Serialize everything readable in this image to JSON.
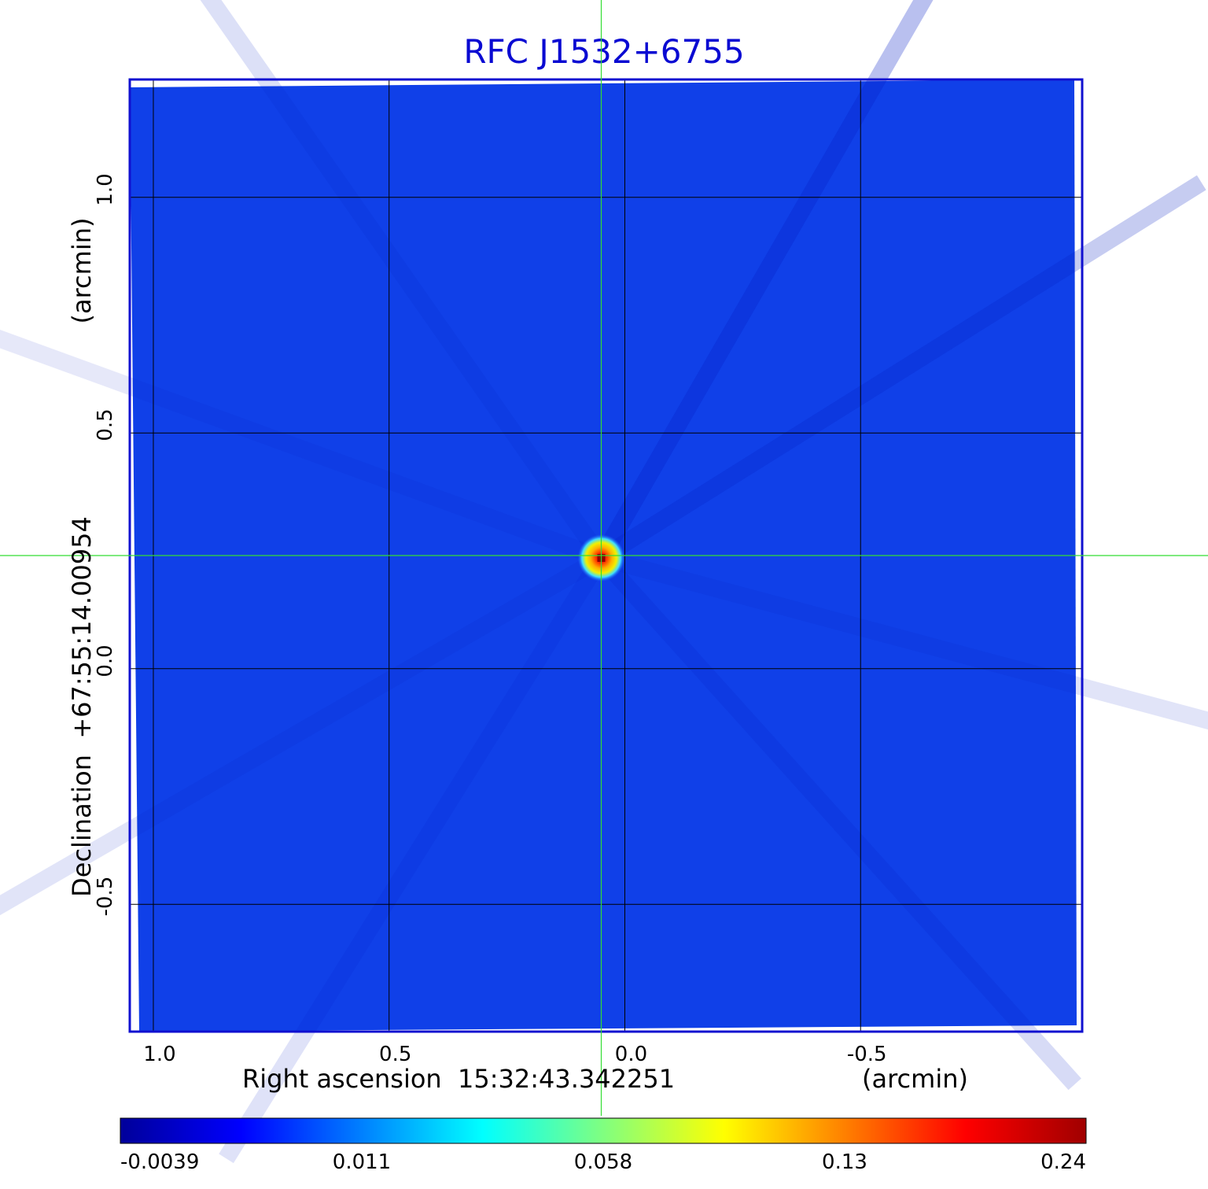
{
  "chart_data": {
    "type": "heatmap",
    "title": "RFC J1532+6755",
    "xlabel": "Right ascension  15:32:43.342251",
    "xunit": "(arcmin)",
    "ylabel": "Declination  +67:55:14.00954",
    "yunit": "(arcmin)",
    "xlim": [
      1.05,
      -0.97
    ],
    "ylim": [
      -0.77,
      1.25
    ],
    "xticks": [
      {
        "value": 1.0,
        "label": "1.0"
      },
      {
        "value": 0.5,
        "label": "0.5"
      },
      {
        "value": 0.0,
        "label": "0.0"
      },
      {
        "value": -0.5,
        "label": "-0.5"
      }
    ],
    "yticks": [
      {
        "value": 1.0,
        "label": "1.0"
      },
      {
        "value": 0.5,
        "label": "0.5"
      },
      {
        "value": 0.0,
        "label": "0.0"
      },
      {
        "value": -0.5,
        "label": "-0.5"
      }
    ],
    "grid": true,
    "crosshair": {
      "x": 0.05,
      "y": 0.24,
      "color": "#33dd33"
    },
    "source_peak": {
      "x": 0.05,
      "y": 0.235,
      "value": 0.24
    },
    "colorbar": {
      "ticks": [
        "-0.0039",
        "0.011",
        "0.058",
        "0.13",
        "0.24"
      ],
      "colormap": [
        "#00009a",
        "#0000ff",
        "#0080ff",
        "#00ffff",
        "#80ff80",
        "#ffff00",
        "#ff8000",
        "#ff0000",
        "#a00000"
      ]
    },
    "colors": {
      "background_field": "#1040e8",
      "frame": "#1010d0",
      "title": "#0a0ad2"
    }
  }
}
